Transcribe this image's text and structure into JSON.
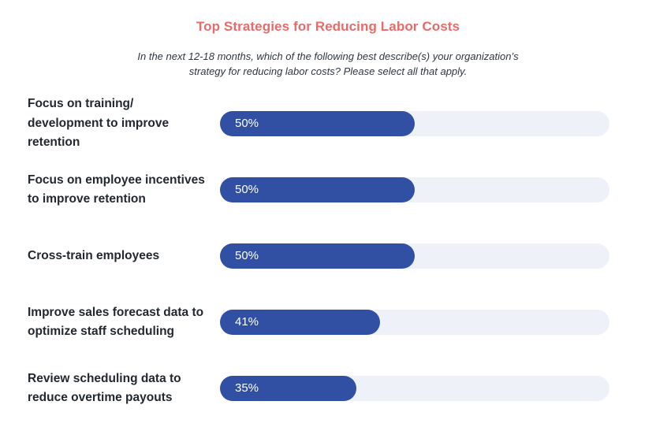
{
  "chart_data": {
    "type": "bar",
    "orientation": "horizontal",
    "title": "Top Strategies for Reducing Labor Costs",
    "subtitle": "In the next 12-18 months, which of the following best describe(s) your organization’s strategy for reducing labor costs? Please select all that apply.",
    "xlim": [
      0,
      100
    ],
    "grid": false,
    "categories": [
      "Focus on training/ development to improve retention",
      "Focus on employee incentives to improve retention",
      "Cross-train employees",
      "Improve sales forecast data to optimize staff scheduling",
      "Review scheduling data to reduce overtime payouts"
    ],
    "values": [
      50,
      50,
      50,
      41,
      35
    ],
    "value_labels": [
      "50%",
      "50%",
      "50%",
      "41%",
      "35%"
    ],
    "colors": {
      "bar": "#3250a3",
      "track": "#eef1f8",
      "title": "#e86a6a"
    }
  }
}
